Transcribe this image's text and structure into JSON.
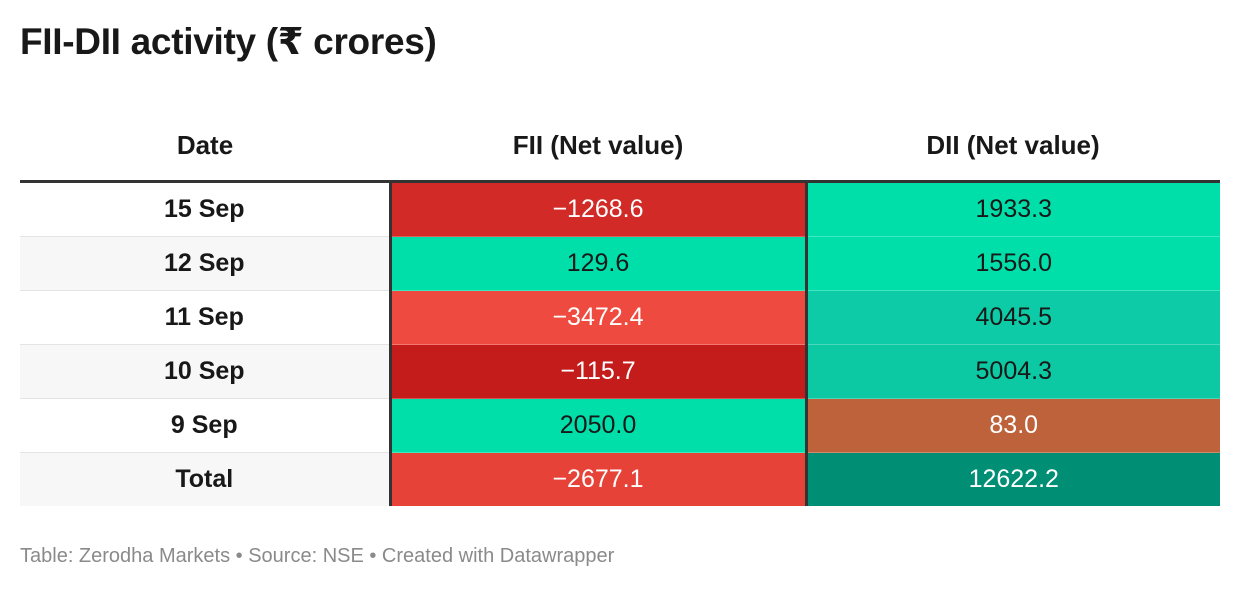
{
  "title": "FII-DII activity (₹ crores)",
  "chart_data": {
    "type": "table",
    "columns": [
      "Date",
      "FII (Net value)",
      "DII (Net value)"
    ],
    "rows": [
      {
        "date": "15 Sep",
        "fii": "−1268.6",
        "dii": "1933.3",
        "fii_color": "#d22a26",
        "dii_color": "#00dfaa",
        "fii_text": "#ffffff",
        "dii_text": "#181818"
      },
      {
        "date": "12 Sep",
        "fii": "129.6",
        "dii": "1556.0",
        "fii_color": "#00dfaa",
        "dii_color": "#00dfaa",
        "fii_text": "#181818",
        "dii_text": "#181818"
      },
      {
        "date": "11 Sep",
        "fii": "−3472.4",
        "dii": "4045.5",
        "fii_color": "#ef4a3f",
        "dii_color": "#0ccba6",
        "fii_text": "#ffffff",
        "dii_text": "#181818"
      },
      {
        "date": "10 Sep",
        "fii": "−115.7",
        "dii": "5004.3",
        "fii_color": "#c41b1b",
        "dii_color": "#0cc9a3",
        "fii_text": "#ffffff",
        "dii_text": "#181818"
      },
      {
        "date": "9 Sep",
        "fii": "2050.0",
        "dii": "83.0",
        "fii_color": "#00dfaa",
        "dii_color": "#bd623a",
        "fii_text": "#181818",
        "dii_text": "#ffffff"
      },
      {
        "date": "Total",
        "fii": "−2677.1",
        "dii": "12622.2",
        "fii_color": "#e64238",
        "dii_color": "#008e74",
        "fii_text": "#ffffff",
        "dii_text": "#ffffff"
      }
    ]
  },
  "footer": "Table: Zerodha Markets • Source: NSE • Created with Datawrapper"
}
